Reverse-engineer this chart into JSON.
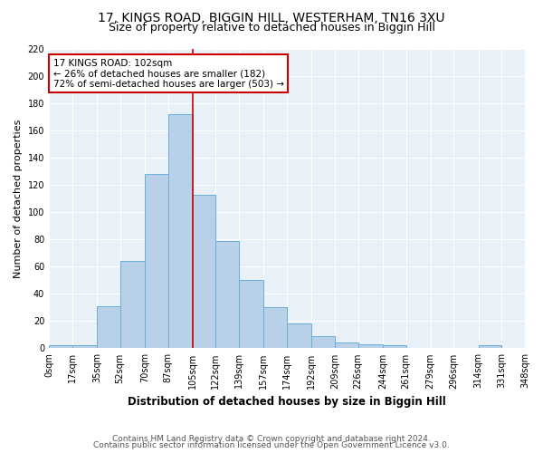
{
  "title": "17, KINGS ROAD, BIGGIN HILL, WESTERHAM, TN16 3XU",
  "subtitle": "Size of property relative to detached houses in Biggin Hill",
  "xlabel": "Distribution of detached houses by size in Biggin Hill",
  "ylabel": "Number of detached properties",
  "bar_color": "#b8d0e8",
  "bar_edge_color": "#6aaed6",
  "background_color": "#e8f0f8",
  "grid_color": "#ffffff",
  "red_line_x": 105,
  "annotation_text": "17 KINGS ROAD: 102sqm\n← 26% of detached houses are smaller (182)\n72% of semi-detached houses are larger (503) →",
  "bins": [
    0,
    17,
    35,
    52,
    70,
    87,
    105,
    122,
    139,
    157,
    174,
    192,
    209,
    226,
    244,
    261,
    279,
    296,
    314,
    331,
    348
  ],
  "heights": [
    2,
    2,
    31,
    64,
    128,
    172,
    113,
    79,
    50,
    30,
    18,
    9,
    4,
    3,
    2,
    0,
    0,
    0,
    2,
    0
  ],
  "ylim": [
    0,
    220
  ],
  "yticks": [
    0,
    20,
    40,
    60,
    80,
    100,
    120,
    140,
    160,
    180,
    200,
    220
  ],
  "footer_line1": "Contains HM Land Registry data © Crown copyright and database right 2024.",
  "footer_line2": "Contains public sector information licensed under the Open Government Licence v3.0.",
  "annotation_box_color": "#ffffff",
  "annotation_box_edge": "#cc0000",
  "title_fontsize": 10,
  "subtitle_fontsize": 9,
  "axis_label_fontsize": 8,
  "tick_fontsize": 7,
  "annotation_fontsize": 7.5,
  "footer_fontsize": 6.5
}
